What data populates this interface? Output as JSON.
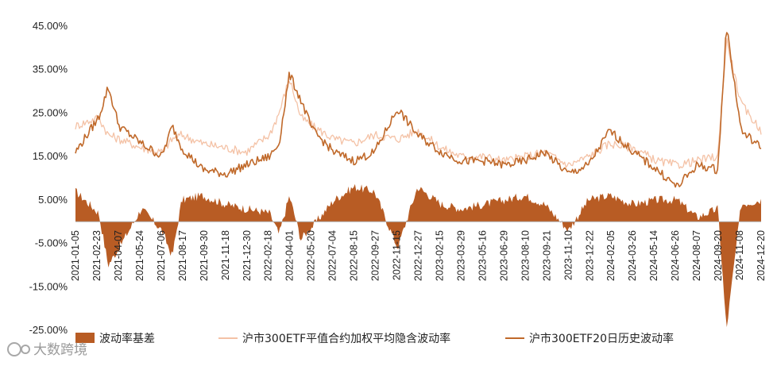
{
  "chart_data": {
    "type": "line",
    "title": "",
    "xlabel": "",
    "ylabel": "",
    "ylim": [
      -0.25,
      0.45
    ],
    "y_ticks": [
      "45.00%",
      "35.00%",
      "25.00%",
      "15.00%",
      "5.00%",
      "-5.00%",
      "-15.00%",
      "-25.00%"
    ],
    "x_tick_labels": [
      "2021-01-05",
      "2021-02-23",
      "2021-04-07",
      "2021-05-24",
      "2021-07-06",
      "2021-08-17",
      "2021-09-30",
      "2021-11-18",
      "2021-12-30",
      "2022-02-18",
      "2022-04-01",
      "2022-05-20",
      "2022-07-04",
      "2022-08-15",
      "2022-09-27",
      "2022-11-15",
      "2022-12-27",
      "2023-02-15",
      "2023-03-29",
      "2023-05-16",
      "2023-06-29",
      "2023-08-10",
      "2023-09-21",
      "2023-11-10",
      "2023-12-22",
      "2024-02-05",
      "2024-03-26",
      "2024-05-14",
      "2024-06-26",
      "2024-08-07",
      "2024-09-20",
      "2024-11-08",
      "2024-12-20"
    ],
    "x": [
      "2021-01-05",
      "2021-02-23",
      "2021-03-15",
      "2021-04-07",
      "2021-05-24",
      "2021-07-06",
      "2021-07-28",
      "2021-08-17",
      "2021-09-30",
      "2021-11-18",
      "2021-12-30",
      "2022-02-18",
      "2022-03-10",
      "2022-04-01",
      "2022-04-25",
      "2022-05-20",
      "2022-07-04",
      "2022-08-15",
      "2022-09-27",
      "2022-11-15",
      "2022-12-27",
      "2023-02-15",
      "2023-03-29",
      "2023-05-16",
      "2023-06-29",
      "2023-08-10",
      "2023-09-21",
      "2023-11-10",
      "2023-12-22",
      "2024-02-05",
      "2024-03-26",
      "2024-05-14",
      "2024-06-26",
      "2024-08-07",
      "2024-09-20",
      "2024-10-08",
      "2024-11-08",
      "2024-12-20"
    ],
    "series": [
      {
        "name": "波动率基差",
        "type": "area",
        "color": "#b85c24",
        "values": [
          0.07,
          0.02,
          -0.1,
          -0.06,
          0.03,
          -0.02,
          -0.08,
          0.05,
          0.06,
          0.04,
          0.03,
          0.02,
          -0.03,
          0.06,
          -0.04,
          -0.01,
          0.05,
          0.08,
          0.07,
          -0.06,
          0.08,
          0.04,
          0.03,
          0.04,
          0.05,
          0.06,
          0.04,
          -0.02,
          0.05,
          0.06,
          0.04,
          0.05,
          0.05,
          0.01,
          0.03,
          -0.25,
          0.04,
          0.05
        ]
      },
      {
        "name": "沪市300ETF平值合约加权平均隐含波动率",
        "type": "line",
        "color": "#f4c2a6",
        "values": [
          0.22,
          0.24,
          0.2,
          0.19,
          0.17,
          0.16,
          0.19,
          0.2,
          0.18,
          0.17,
          0.16,
          0.2,
          0.25,
          0.33,
          0.24,
          0.22,
          0.19,
          0.18,
          0.2,
          0.19,
          0.21,
          0.17,
          0.15,
          0.15,
          0.14,
          0.15,
          0.16,
          0.13,
          0.15,
          0.18,
          0.17,
          0.14,
          0.13,
          0.14,
          0.15,
          0.42,
          0.27,
          0.21
        ]
      },
      {
        "name": "沪市300ETF20日历史波动率",
        "type": "line",
        "color": "#c0692a",
        "values": [
          0.16,
          0.24,
          0.31,
          0.22,
          0.18,
          0.15,
          0.22,
          0.17,
          0.12,
          0.11,
          0.13,
          0.15,
          0.18,
          0.34,
          0.28,
          0.21,
          0.16,
          0.14,
          0.16,
          0.26,
          0.2,
          0.16,
          0.14,
          0.14,
          0.13,
          0.14,
          0.16,
          0.11,
          0.13,
          0.21,
          0.16,
          0.12,
          0.08,
          0.13,
          0.12,
          0.45,
          0.21,
          0.17
        ]
      }
    ],
    "legend_position": "bottom",
    "grid": false
  },
  "watermark": "大数跨境"
}
